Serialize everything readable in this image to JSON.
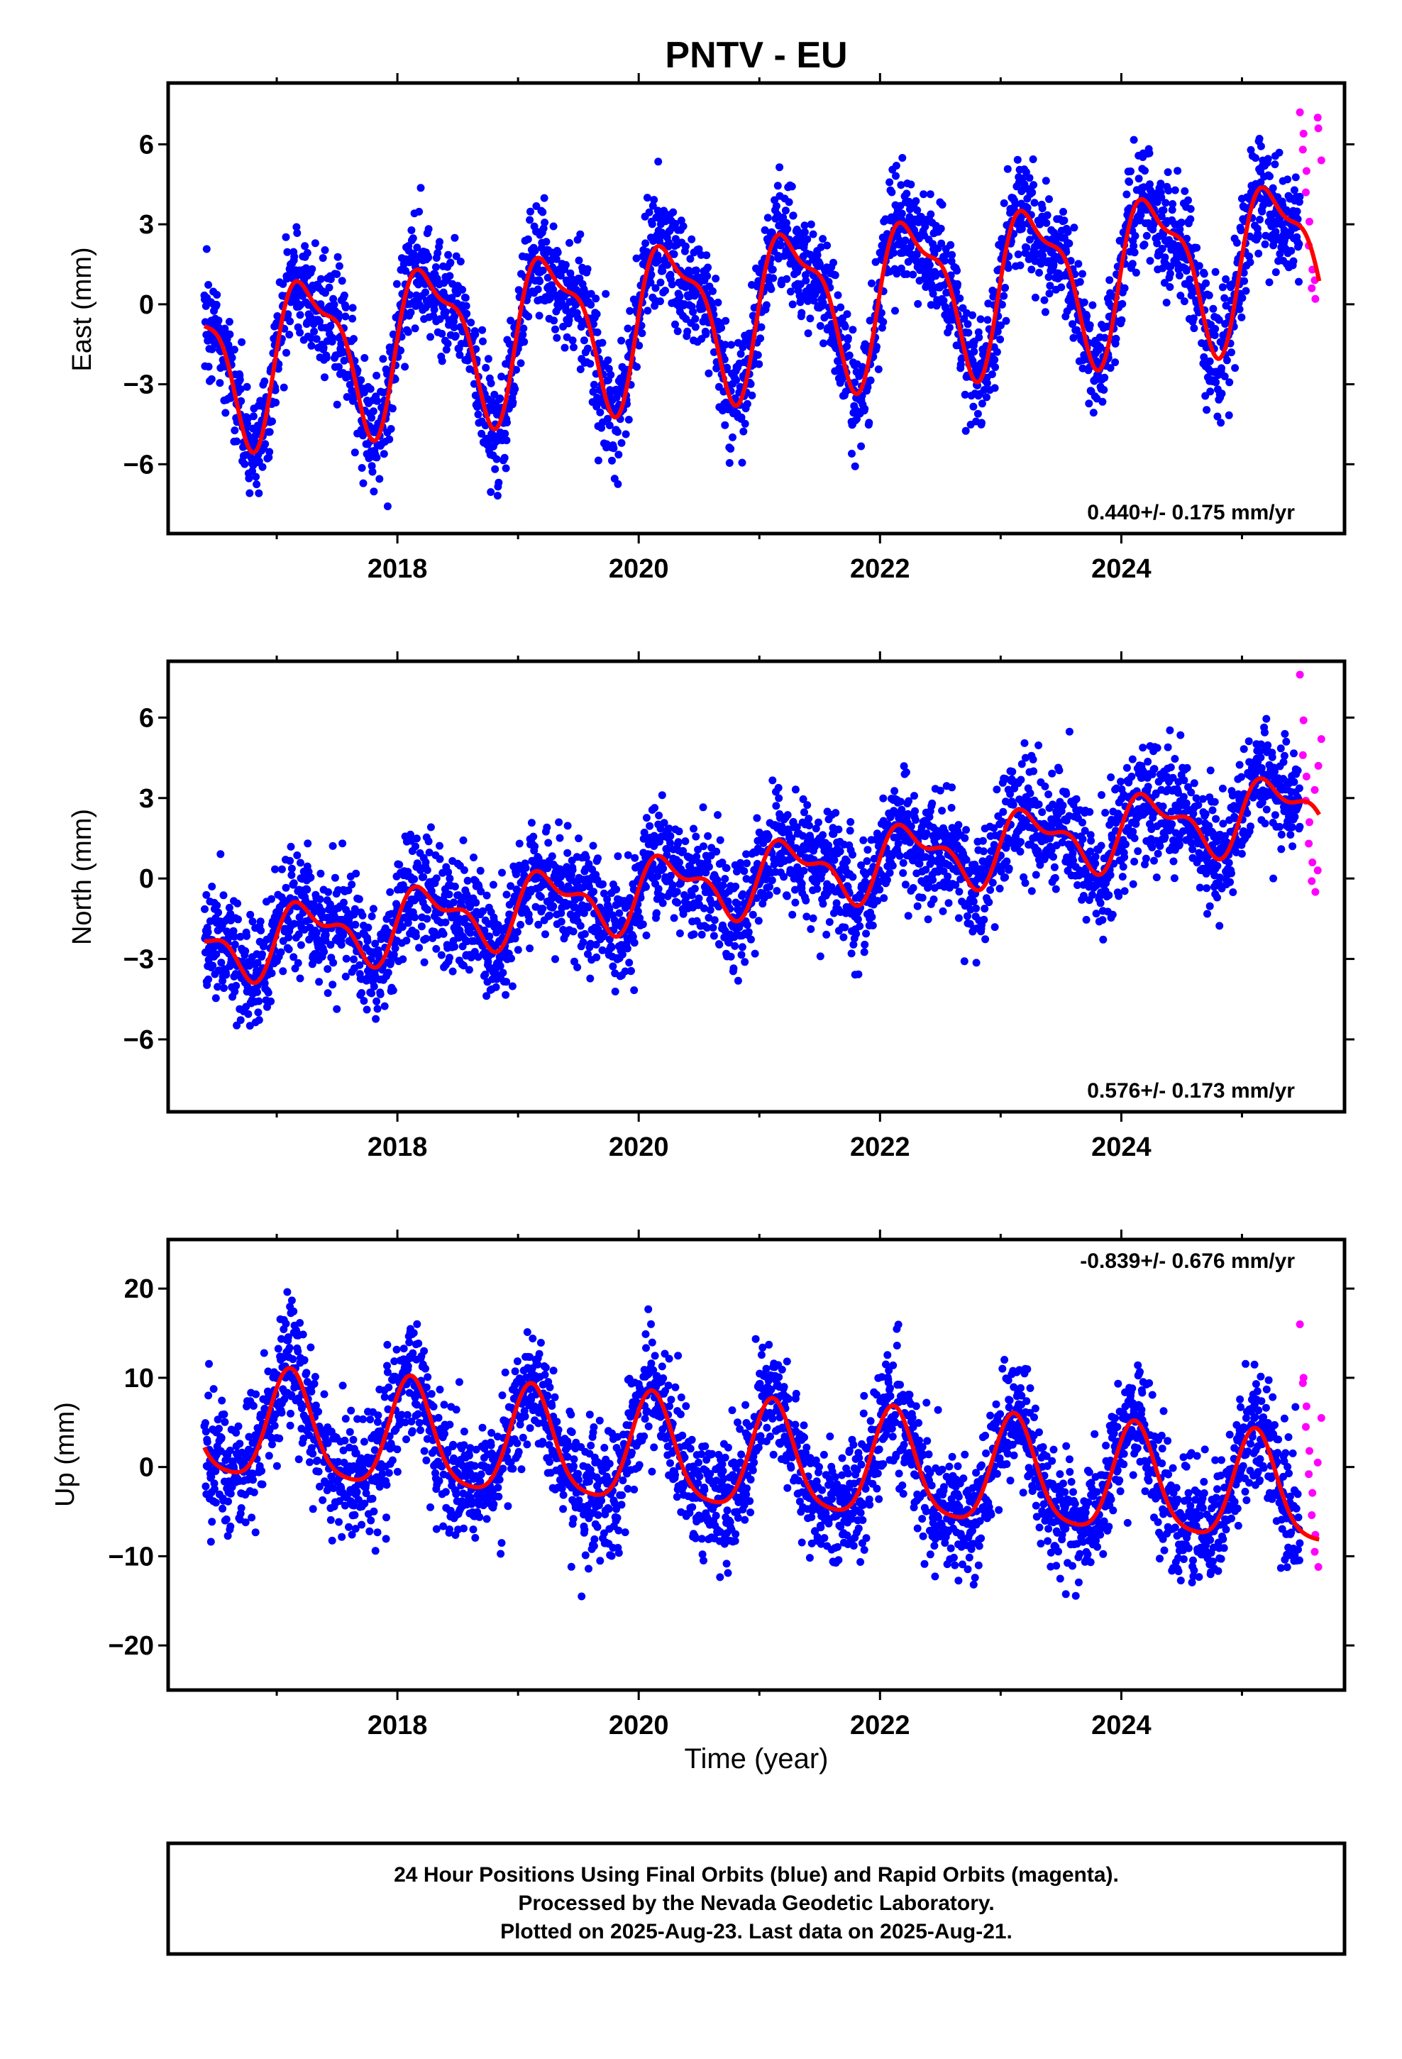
{
  "title": "PNTV - EU",
  "colors": {
    "final_orbits": "#0000ff",
    "rapid_orbits": "#ff00ff",
    "model": "#ff0000",
    "frame": "#000000"
  },
  "chart_data": [
    {
      "type": "scatter",
      "ylabel": "East (mm)",
      "xlim": [
        2016.1,
        2025.85
      ],
      "ylim": [
        -8.6,
        8.3
      ],
      "xticks": [
        "2018",
        "2020",
        "2022",
        "2024"
      ],
      "xtick_values": [
        2018,
        2020,
        2022,
        2024
      ],
      "yticks": [
        "6",
        "3",
        "0",
        "−3",
        "−6"
      ],
      "ytick_values": [
        6,
        3,
        0,
        -3,
        -6
      ],
      "rate_label": "0.440+/- 0.175 mm/yr",
      "rate_position": "bottom-right",
      "data_start": 2016.4,
      "rapid_start": 2025.48,
      "data_end": 2025.64,
      "model": {
        "offset": -2.1,
        "trend_mm_per_yr": 0.44,
        "annual_amplitude": 2.75,
        "annual_phase": -0.15,
        "semiannual_amplitude": 1.0,
        "semiannual_phase": 0.55
      },
      "scatter_sd": 1.05,
      "rapid_values": [
        7.2,
        6.4,
        5.8,
        5.0,
        4.2,
        3.1,
        2.2,
        1.3,
        0.6,
        0.2,
        0.9,
        6.6,
        7.0,
        5.4
      ]
    },
    {
      "type": "scatter",
      "ylabel": "North (mm)",
      "xlim": [
        2016.1,
        2025.85
      ],
      "ylim": [
        -8.7,
        8.1
      ],
      "xticks": [
        "2018",
        "2020",
        "2022",
        "2024"
      ],
      "xtick_values": [
        2018,
        2020,
        2022,
        2024
      ],
      "yticks": [
        "6",
        "3",
        "0",
        "−3",
        "−6"
      ],
      "ytick_values": [
        6,
        3,
        0,
        -3,
        -6
      ],
      "rate_label": "0.576+/- 0.173 mm/yr",
      "rate_position": "bottom-right",
      "data_start": 2016.4,
      "rapid_start": 2025.48,
      "data_end": 2025.64,
      "model": {
        "offset": -2.6,
        "trend_mm_per_yr": 0.576,
        "annual_amplitude": 1.1,
        "annual_phase": -0.05,
        "semiannual_amplitude": 0.55,
        "semiannual_phase": 0.35
      },
      "scatter_sd": 1.05,
      "rapid_values": [
        7.6,
        5.9,
        4.6,
        3.8,
        2.9,
        2.1,
        1.3,
        0.6,
        -0.1,
        -0.5,
        3.3,
        4.2,
        0.3,
        5.2
      ]
    },
    {
      "type": "scatter",
      "ylabel": "Up (mm)",
      "xlim": [
        2016.1,
        2025.85
      ],
      "ylim": [
        -25,
        25.5
      ],
      "xticks": [
        "2018",
        "2020",
        "2022",
        "2024"
      ],
      "xtick_values": [
        2018,
        2020,
        2022,
        2024
      ],
      "yticks": [
        "20",
        "10",
        "0",
        "−10",
        "−20"
      ],
      "ytick_values": [
        20,
        10,
        0,
        -10,
        -20
      ],
      "rate_label": "-0.839+/- 0.676 mm/yr",
      "rate_position": "top-right",
      "xlabel": "Time (year)",
      "data_start": 2016.4,
      "rapid_start": 2025.48,
      "data_end": 2025.64,
      "model": {
        "offset": 4.5,
        "trend_mm_per_yr": -0.839,
        "annual_amplitude": 6.0,
        "annual_phase": 0.85,
        "semiannual_amplitude": 1.2,
        "semiannual_phase": 0.3
      },
      "scatter_sd": 3.4,
      "rapid_values": [
        16.0,
        10.0,
        9.4,
        6.8,
        4.5,
        1.8,
        -0.8,
        -2.9,
        -5.4,
        -7.6,
        -9.5,
        -11.2,
        0.5,
        5.5
      ]
    }
  ],
  "footer": {
    "line1": "24 Hour Positions Using Final Orbits (blue) and Rapid Orbits (magenta).",
    "line2": "Processed by the Nevada Geodetic Laboratory.",
    "line3": "Plotted on 2025-Aug-23. Last data on 2025-Aug-21."
  }
}
